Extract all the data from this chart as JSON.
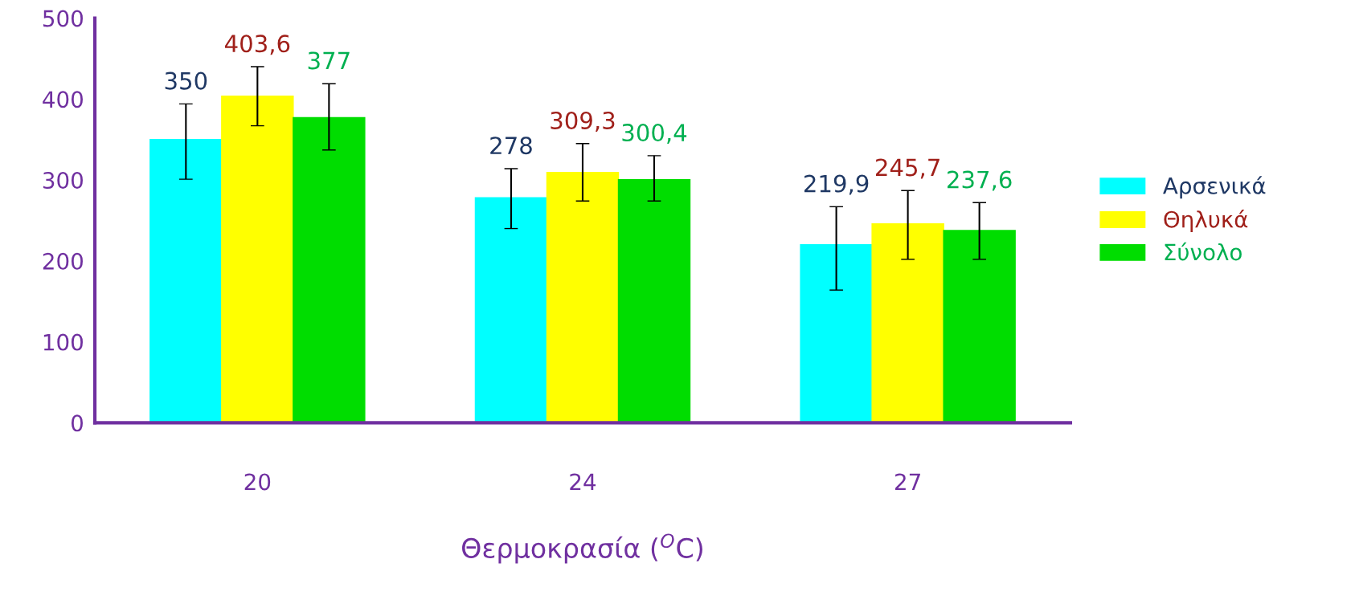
{
  "chart_data": {
    "type": "bar",
    "xlabel": "Θερμοκρασία ($^{O}$C)",
    "categories": [
      "20",
      "24",
      "27"
    ],
    "series": [
      {
        "name": "Αρσενικά",
        "color": "#00ffff",
        "values": [
          350,
          278,
          219.9
        ],
        "value_labels": [
          "350",
          "278",
          "219,9"
        ],
        "errors": [
          [
            301,
            394
          ],
          [
            240,
            314
          ],
          [
            164,
            267
          ]
        ]
      },
      {
        "name": "Θηλυκά",
        "color": "#ffff00",
        "values": [
          403.6,
          309.3,
          245.7
        ],
        "value_labels": [
          "403,6",
          "309,3",
          "245,7"
        ],
        "errors": [
          [
            367,
            440
          ],
          [
            274,
            345
          ],
          [
            202,
            287
          ]
        ]
      },
      {
        "name": "Σύνολο",
        "color": "#00dd00",
        "values": [
          377,
          300.4,
          237.6
        ],
        "value_labels": [
          "377",
          "300,4",
          "237,6"
        ],
        "errors": [
          [
            337,
            419
          ],
          [
            274,
            330
          ],
          [
            202,
            272
          ]
        ]
      }
    ],
    "ylim": [
      0,
      500
    ],
    "yticks": [
      0,
      100,
      200,
      300,
      400,
      500
    ],
    "legend": "right",
    "grid": false
  }
}
